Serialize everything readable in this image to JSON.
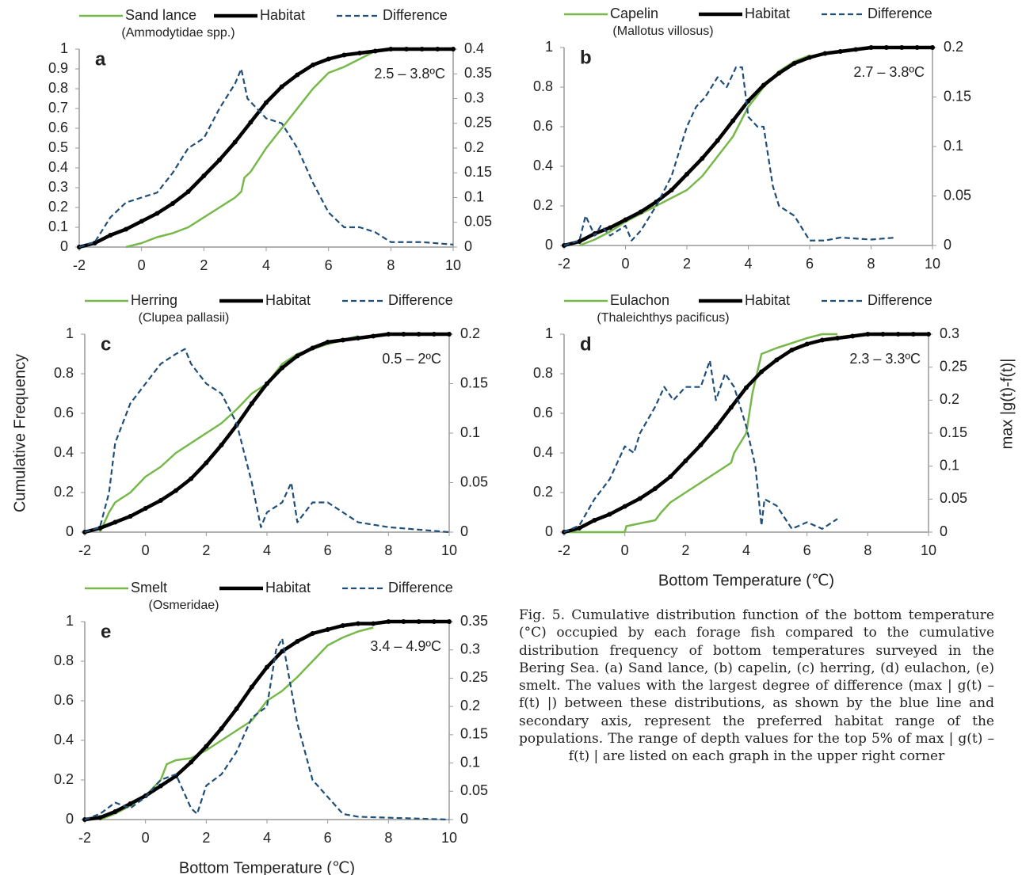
{
  "chart_data": [
    {
      "type": "line",
      "panel": "a",
      "annotation": "2.5 – 3.8ºC",
      "subtitle": "(Ammodytidae spp.)",
      "xlim": [
        -2,
        10
      ],
      "xticks": [
        -2,
        0,
        2,
        4,
        6,
        8,
        10
      ],
      "ylim": [
        0,
        1
      ],
      "yticks": [
        0,
        0.1,
        0.2,
        0.3,
        0.4,
        0.5,
        0.6,
        0.7,
        0.8,
        0.9,
        1
      ],
      "y2lim": [
        0,
        0.4
      ],
      "y2ticks": [
        0,
        0.05,
        0.1,
        0.15,
        0.2,
        0.25,
        0.3,
        0.35,
        0.4
      ],
      "series": [
        {
          "name": "Sand lance",
          "color": "#77b84a",
          "style": "solid",
          "x": [
            -0.5,
            0,
            0.5,
            1,
            1.5,
            2,
            2.5,
            3,
            3.2,
            3.3,
            3.5,
            4,
            4.5,
            5,
            5.5,
            6,
            6.5,
            7,
            7.5,
            8
          ],
          "values": [
            0,
            0.02,
            0.05,
            0.07,
            0.1,
            0.15,
            0.2,
            0.25,
            0.28,
            0.35,
            0.38,
            0.5,
            0.6,
            0.7,
            0.8,
            0.88,
            0.91,
            0.95,
            0.99,
            1
          ]
        },
        {
          "name": "Habitat",
          "color": "#000000",
          "style": "thick",
          "x": [
            -2,
            -1.5,
            -1,
            -0.5,
            0,
            0.5,
            1,
            1.5,
            2,
            2.5,
            3,
            3.5,
            4,
            4.5,
            5,
            5.5,
            6,
            6.5,
            7,
            7.5,
            8,
            8.5,
            9,
            9.5,
            10
          ],
          "values": [
            0,
            0.02,
            0.06,
            0.09,
            0.13,
            0.17,
            0.22,
            0.28,
            0.36,
            0.44,
            0.53,
            0.63,
            0.73,
            0.81,
            0.87,
            0.92,
            0.95,
            0.97,
            0.98,
            0.99,
            1,
            1,
            1,
            1,
            1
          ]
        },
        {
          "name": "Difference",
          "color": "#1f4e79",
          "style": "dashed",
          "axis": "y2",
          "x": [
            -2,
            -1.5,
            -1,
            -0.5,
            0,
            0.5,
            1,
            1.5,
            2,
            2.5,
            3,
            3.2,
            3.4,
            4,
            4.5,
            5,
            5.5,
            6,
            6.5,
            7,
            7.5,
            8,
            9,
            10
          ],
          "values": [
            0,
            0.01,
            0.06,
            0.09,
            0.1,
            0.11,
            0.15,
            0.2,
            0.22,
            0.28,
            0.33,
            0.36,
            0.3,
            0.26,
            0.25,
            0.2,
            0.13,
            0.07,
            0.04,
            0.04,
            0.03,
            0.01,
            0.01,
            0.005
          ]
        }
      ]
    },
    {
      "type": "line",
      "panel": "b",
      "annotation": "2.7 – 3.8ºC",
      "subtitle": "(Mallotus villosus)",
      "xlim": [
        -2,
        10
      ],
      "xticks": [
        -2,
        0,
        2,
        4,
        6,
        8,
        10
      ],
      "ylim": [
        0,
        1
      ],
      "yticks": [
        0,
        0.2,
        0.4,
        0.6,
        0.8,
        1
      ],
      "y2lim": [
        0,
        0.2
      ],
      "y2ticks": [
        0,
        0.05,
        0.1,
        0.15,
        0.2
      ],
      "series": [
        {
          "name": "Capelin",
          "color": "#77b84a",
          "style": "solid",
          "x": [
            -1.5,
            -1,
            -0.5,
            0,
            0.5,
            1,
            1.5,
            2,
            2.5,
            3,
            3.5,
            4,
            4.5,
            5,
            5.5,
            6
          ],
          "values": [
            0,
            0.03,
            0.07,
            0.12,
            0.16,
            0.2,
            0.24,
            0.28,
            0.35,
            0.45,
            0.55,
            0.7,
            0.8,
            0.88,
            0.93,
            0.96
          ]
        },
        {
          "name": "Habitat",
          "color": "#000000",
          "style": "thick",
          "x": [
            -2,
            -1.5,
            -1,
            -0.5,
            0,
            0.5,
            1,
            1.5,
            2,
            2.5,
            3,
            3.5,
            4,
            4.5,
            5,
            5.5,
            6,
            6.5,
            7,
            7.5,
            8,
            8.5,
            9,
            9.5,
            10
          ],
          "values": [
            0,
            0.02,
            0.06,
            0.09,
            0.13,
            0.17,
            0.22,
            0.28,
            0.36,
            0.44,
            0.53,
            0.63,
            0.73,
            0.81,
            0.87,
            0.92,
            0.95,
            0.97,
            0.98,
            0.99,
            1,
            1,
            1,
            1,
            1
          ]
        },
        {
          "name": "Difference",
          "color": "#1f4e79",
          "style": "dashed",
          "axis": "y2",
          "x": [
            -2,
            -1.5,
            -1.3,
            -1,
            -0.8,
            -0.5,
            0,
            0.2,
            0.5,
            1,
            1.5,
            2,
            2.3,
            2.6,
            3,
            3.3,
            3.6,
            3.8,
            4,
            4.3,
            4.5,
            4.8,
            5,
            5.5,
            6,
            6.5,
            7,
            8,
            8.8
          ],
          "values": [
            0,
            0.005,
            0.03,
            0.01,
            0.02,
            0.01,
            0.02,
            0.005,
            0.015,
            0.04,
            0.07,
            0.12,
            0.14,
            0.15,
            0.17,
            0.16,
            0.18,
            0.18,
            0.13,
            0.12,
            0.12,
            0.06,
            0.04,
            0.03,
            0.005,
            0.005,
            0.008,
            0.006,
            0.008
          ]
        }
      ]
    },
    {
      "type": "line",
      "panel": "c",
      "annotation": "0.5 – 2ºC",
      "subtitle": "(Clupea pallasii)",
      "ylabel": "Cumulative Frequency",
      "xlim": [
        -2,
        10
      ],
      "xticks": [
        -2,
        0,
        2,
        4,
        6,
        8,
        10
      ],
      "ylim": [
        0,
        1
      ],
      "yticks": [
        0,
        0.2,
        0.4,
        0.6,
        0.8,
        1
      ],
      "y2lim": [
        0,
        0.2
      ],
      "y2ticks": [
        0,
        0.05,
        0.1,
        0.15,
        0.2
      ],
      "series": [
        {
          "name": "Herring",
          "color": "#77b84a",
          "style": "solid",
          "x": [
            -1.5,
            -1.2,
            -1,
            -0.5,
            0,
            0.5,
            1,
            1.5,
            2,
            2.5,
            3,
            3.5,
            4,
            4.5,
            5,
            6,
            7
          ],
          "values": [
            0,
            0.1,
            0.15,
            0.2,
            0.28,
            0.33,
            0.4,
            0.45,
            0.5,
            0.55,
            0.62,
            0.7,
            0.75,
            0.85,
            0.9,
            0.95,
            0.99
          ]
        },
        {
          "name": "Habitat",
          "color": "#000000",
          "style": "thick",
          "x": [
            -2,
            -1.5,
            -1,
            -0.5,
            0,
            0.5,
            1,
            1.5,
            2,
            2.5,
            3,
            3.5,
            4,
            4.5,
            5,
            5.5,
            6,
            6.5,
            7,
            7.5,
            8,
            8.5,
            9,
            9.5,
            10
          ],
          "values": [
            0,
            0.02,
            0.05,
            0.08,
            0.12,
            0.16,
            0.21,
            0.27,
            0.35,
            0.44,
            0.54,
            0.65,
            0.75,
            0.83,
            0.89,
            0.93,
            0.96,
            0.97,
            0.98,
            0.99,
            1,
            1,
            1,
            1,
            1
          ]
        },
        {
          "name": "Difference",
          "color": "#1f4e79",
          "style": "dashed",
          "axis": "y2",
          "x": [
            -2,
            -1.5,
            -1.2,
            -1,
            -0.5,
            0,
            0.5,
            1,
            1.3,
            1.5,
            2,
            2.5,
            3,
            3.5,
            3.8,
            4,
            4.5,
            4.8,
            5,
            5.5,
            6,
            6.5,
            7,
            8,
            10
          ],
          "values": [
            0,
            0.005,
            0.04,
            0.09,
            0.13,
            0.15,
            0.17,
            0.18,
            0.185,
            0.17,
            0.15,
            0.14,
            0.11,
            0.05,
            0.005,
            0.02,
            0.03,
            0.05,
            0.01,
            0.03,
            0.03,
            0.02,
            0.01,
            0.005,
            0
          ]
        }
      ]
    },
    {
      "type": "line",
      "panel": "d",
      "annotation": "2.3 – 3.3ºC",
      "subtitle": "(Thaleichthys pacificus)",
      "xlabel": "Bottom Temperature (℃)",
      "y2label": "max |g(t)-f(t)|",
      "xlim": [
        -2,
        10
      ],
      "xticks": [
        -2,
        0,
        2,
        4,
        6,
        8,
        10
      ],
      "ylim": [
        0,
        1
      ],
      "yticks": [
        0,
        0.2,
        0.4,
        0.6,
        0.8,
        1
      ],
      "y2lim": [
        0,
        0.3
      ],
      "y2ticks": [
        0,
        0.05,
        0.1,
        0.15,
        0.2,
        0.25,
        0.3
      ],
      "series": [
        {
          "name": "Eulachon",
          "color": "#77b84a",
          "style": "solid",
          "x": [
            -2,
            0,
            0.05,
            1,
            1.2,
            1.5,
            2,
            2.5,
            3,
            3.5,
            3.6,
            4,
            4.2,
            4.5,
            5,
            6,
            6.5,
            7
          ],
          "values": [
            0,
            0,
            0.03,
            0.06,
            0.1,
            0.15,
            0.2,
            0.25,
            0.3,
            0.35,
            0.4,
            0.5,
            0.7,
            0.9,
            0.93,
            0.98,
            1,
            1
          ]
        },
        {
          "name": "Habitat",
          "color": "#000000",
          "style": "thick",
          "x": [
            -2,
            -1.5,
            -1,
            -0.5,
            0,
            0.5,
            1,
            1.5,
            2,
            2.5,
            3,
            3.5,
            4,
            4.5,
            5,
            5.5,
            6,
            6.5,
            7,
            7.5,
            8,
            8.5,
            9,
            9.5,
            10
          ],
          "values": [
            0,
            0.02,
            0.06,
            0.09,
            0.13,
            0.17,
            0.22,
            0.28,
            0.36,
            0.44,
            0.53,
            0.63,
            0.73,
            0.81,
            0.87,
            0.92,
            0.95,
            0.97,
            0.98,
            0.99,
            1,
            1,
            1,
            1,
            1
          ]
        },
        {
          "name": "Difference",
          "color": "#1f4e79",
          "style": "dashed",
          "axis": "y2",
          "x": [
            -2,
            -1.5,
            -1,
            -0.5,
            0,
            0.3,
            0.5,
            1,
            1.3,
            1.6,
            2,
            2.5,
            2.8,
            3,
            3.3,
            3.6,
            4,
            4.3,
            4.5,
            4.6,
            5,
            5.5,
            6,
            6.5,
            7
          ],
          "values": [
            0,
            0.01,
            0.05,
            0.08,
            0.13,
            0.12,
            0.15,
            0.19,
            0.22,
            0.2,
            0.22,
            0.22,
            0.26,
            0.2,
            0.24,
            0.22,
            0.16,
            0.1,
            0.01,
            0.05,
            0.04,
            0.005,
            0.015,
            0.005,
            0.02
          ]
        }
      ]
    },
    {
      "type": "line",
      "panel": "e",
      "annotation": "3.4 – 4.9ºC",
      "subtitle": "(Osmeridae)",
      "xlabel": "Bottom Temperature (℃)",
      "xlim": [
        -2,
        10
      ],
      "xticks": [
        -2,
        0,
        2,
        4,
        6,
        8,
        10
      ],
      "ylim": [
        0,
        1
      ],
      "yticks": [
        0,
        0.2,
        0.4,
        0.6,
        0.8,
        1
      ],
      "y2lim": [
        0,
        0.35
      ],
      "y2ticks": [
        0,
        0.05,
        0.1,
        0.15,
        0.2,
        0.25,
        0.3,
        0.35
      ],
      "series": [
        {
          "name": "Smelt",
          "color": "#77b84a",
          "style": "solid",
          "x": [
            -1.5,
            -1,
            -0.5,
            0,
            0.5,
            0.7,
            1,
            1.5,
            2,
            2.5,
            3,
            3.5,
            4,
            4.5,
            5,
            5.5,
            6,
            6.5,
            7,
            7.5
          ],
          "values": [
            0,
            0.03,
            0.07,
            0.12,
            0.2,
            0.28,
            0.3,
            0.31,
            0.35,
            0.4,
            0.45,
            0.5,
            0.6,
            0.65,
            0.72,
            0.8,
            0.88,
            0.92,
            0.95,
            0.97
          ]
        },
        {
          "name": "Habitat",
          "color": "#000000",
          "style": "thick",
          "x": [
            -2,
            -1.5,
            -1,
            -0.5,
            0,
            0.5,
            1,
            1.5,
            2,
            2.5,
            3,
            3.5,
            4,
            4.5,
            5,
            5.5,
            6,
            6.5,
            7,
            7.5,
            8,
            8.5,
            9,
            9.5,
            10
          ],
          "values": [
            0,
            0.01,
            0.04,
            0.08,
            0.12,
            0.17,
            0.22,
            0.29,
            0.37,
            0.46,
            0.56,
            0.67,
            0.77,
            0.85,
            0.9,
            0.94,
            0.96,
            0.98,
            0.99,
            0.99,
            1,
            1,
            1,
            1,
            1
          ]
        },
        {
          "name": "Difference",
          "color": "#1f4e79",
          "style": "dashed",
          "axis": "y2",
          "x": [
            -2,
            -1.5,
            -1,
            -0.5,
            0,
            0.5,
            1,
            1.5,
            1.7,
            2,
            2.5,
            3,
            3.5,
            4,
            4.3,
            4.5,
            5,
            5.5,
            6,
            6.5,
            7,
            10
          ],
          "values": [
            0,
            0.01,
            0.03,
            0.02,
            0.04,
            0.07,
            0.08,
            0.02,
            0.01,
            0.06,
            0.08,
            0.12,
            0.18,
            0.2,
            0.3,
            0.32,
            0.17,
            0.07,
            0.04,
            0.01,
            0.005,
            0
          ]
        }
      ]
    }
  ],
  "caption": "Fig. 5. Cumulative distribution function of the bottom temperature (°C) occupied by each forage fish compared to the cumulative distribution frequency of bottom temperatures surveyed in the Bering Sea. (a) Sand lance, (b) capelin, (c) herring, (d) eulachon, (e) smelt. The values with the largest degree of difference (max | g(t) – f(t) |) between these distributions, as shown by the blue line and secondary axis, represent the preferred habitat range of the populations. The range of depth values for the top 5% of max | g(t) – f(t) | are listed on each graph in the upper right corner"
}
